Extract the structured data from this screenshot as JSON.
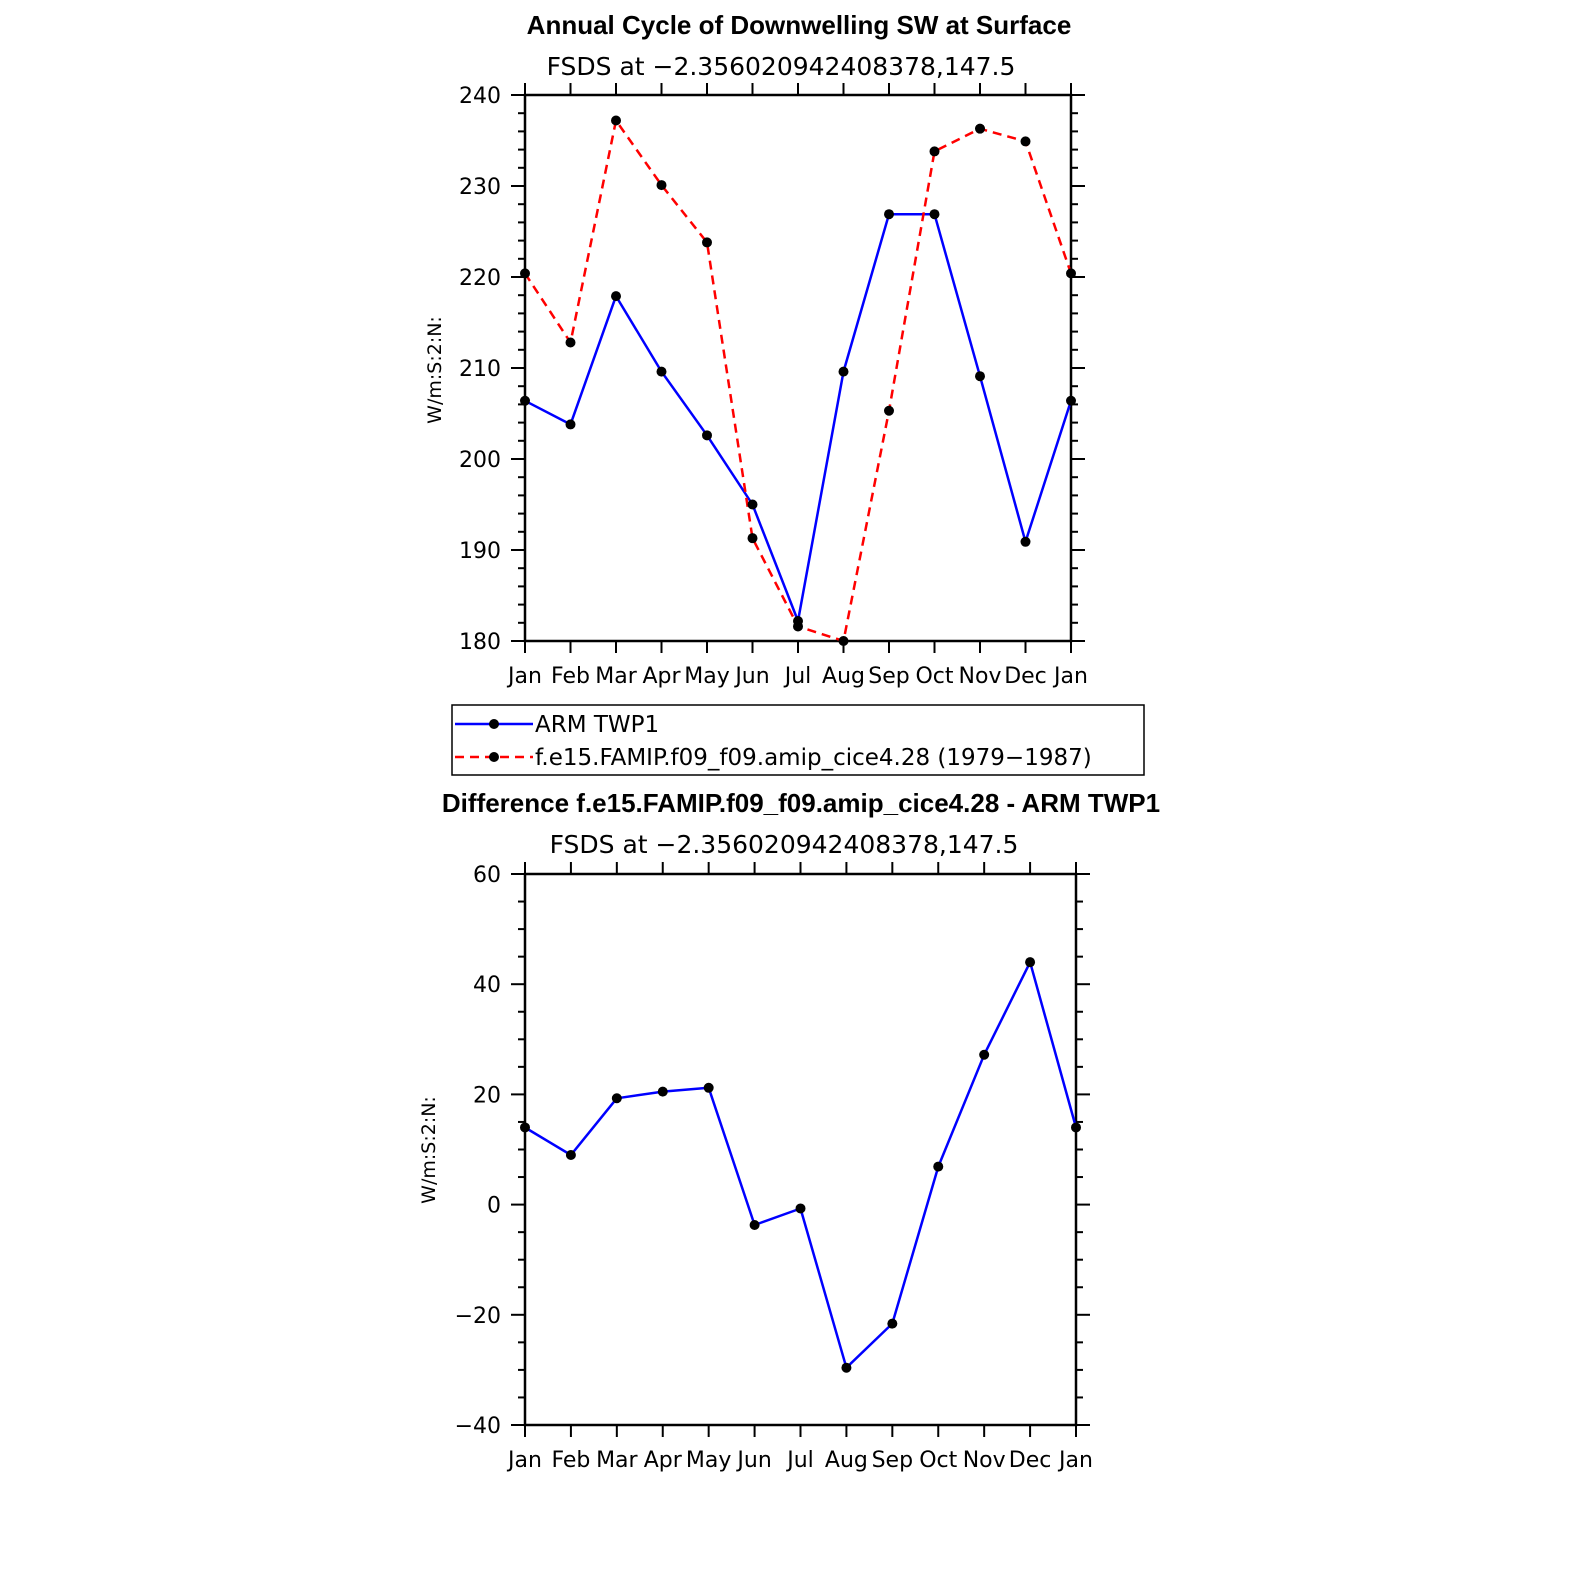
{
  "chart_data": [
    {
      "type": "line",
      "title": "Annual Cycle of Downwelling SW at Surface",
      "subtitle": "FSDS at −2.356020942408378,147.5",
      "ylabel": "W/m:S:2:N:",
      "ylim": [
        180,
        240
      ],
      "yticks": [
        "240",
        "230",
        "220",
        "210",
        "200",
        "190",
        "180"
      ],
      "categories": [
        "Jan",
        "Feb",
        "Mar",
        "Apr",
        "May",
        "Jun",
        "Jul",
        "Aug",
        "Sep",
        "Oct",
        "Nov",
        "Dec",
        "Jan"
      ],
      "series": [
        {
          "name": "ARM TWP1",
          "color": "#0000ff",
          "style": "solid",
          "values": [
            206.4,
            203.8,
            217.9,
            209.6,
            202.6,
            195.0,
            182.2,
            209.6,
            226.9,
            226.9,
            209.1,
            190.9,
            206.4
          ]
        },
        {
          "name": "f.e15.FAMIP.f09_f09.amip_cice4.28 (1979−1987)",
          "color": "#ff0000",
          "style": "dashed",
          "values": [
            220.4,
            212.8,
            237.2,
            230.1,
            223.8,
            191.3,
            181.6,
            180.0,
            205.3,
            233.8,
            236.3,
            234.9,
            220.4
          ]
        }
      ],
      "legend_position": "below"
    },
    {
      "type": "line",
      "title": "Difference f.e15.FAMIP.f09_f09.amip_cice4.28 - ARM TWP1",
      "subtitle": "FSDS at −2.356020942408378,147.5",
      "ylabel": "W/m:S:2:N:",
      "ylim": [
        -40,
        60
      ],
      "yticks": [
        "60",
        "40",
        "20",
        "0",
        "−20",
        "−40"
      ],
      "categories": [
        "Jan",
        "Feb",
        "Mar",
        "Apr",
        "May",
        "Jun",
        "Jul",
        "Aug",
        "Sep",
        "Oct",
        "Nov",
        "Dec",
        "Jan"
      ],
      "series": [
        {
          "color": "#0000ff",
          "style": "solid",
          "values": [
            14.0,
            9.0,
            19.3,
            20.5,
            21.2,
            -3.7,
            -0.7,
            -29.6,
            -21.6,
            6.9,
            27.2,
            44.0,
            14.0
          ]
        }
      ]
    }
  ]
}
